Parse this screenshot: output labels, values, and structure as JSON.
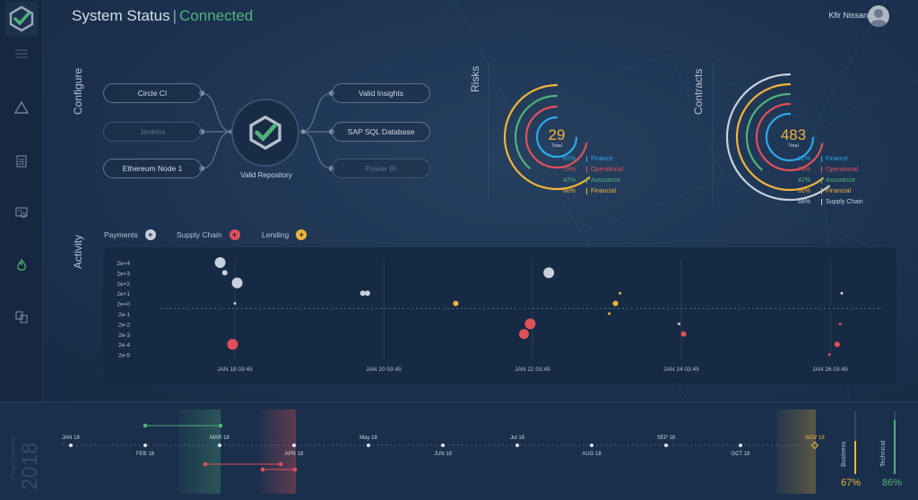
{
  "header": {
    "title": "System Status",
    "separator": "|",
    "status": "Connected",
    "user_name": "Kfir Nissan"
  },
  "colors": {
    "blue": "#2ea8e6",
    "red": "#e0505a",
    "green": "#4fb27a",
    "yellow": "#f0b43a",
    "white": "#c8d0dc",
    "accent_status": "#4fb27a"
  },
  "sidebar": {
    "items": [
      {
        "name": "menu-icon"
      },
      {
        "name": "alert-triangle-icon"
      },
      {
        "name": "document-icon"
      },
      {
        "name": "certificate-icon"
      },
      {
        "name": "flame-icon"
      },
      {
        "name": "transfer-icon"
      }
    ]
  },
  "configure": {
    "label": "Configure",
    "inputs": [
      "Circle CI",
      "Jenkins",
      "Ethereum Node 1"
    ],
    "outputs": [
      "Valid Insights",
      "SAP SQL Database",
      "Power BI"
    ],
    "repository": "Valid Repository"
  },
  "risks": {
    "label": "Risks",
    "total": "29",
    "total_label": "Total",
    "legend": [
      {
        "pct": "81%",
        "name": "Finance",
        "color": "#2ea8e6",
        "value": 0.81
      },
      {
        "pct": "78%",
        "name": "Operational",
        "color": "#e0505a",
        "value": 0.78
      },
      {
        "pct": "42%",
        "name": "Assurance",
        "color": "#4fb27a",
        "value": 0.42
      },
      {
        "pct": "66%",
        "name": "Financial",
        "color": "#f0b43a",
        "value": 0.66
      }
    ]
  },
  "contracts": {
    "label": "Contracts",
    "total": "483",
    "total_label": "Total",
    "legend": [
      {
        "pct": "81%",
        "name": "Finance",
        "color": "#2ea8e6",
        "value": 0.81
      },
      {
        "pct": "78%",
        "name": "Operational",
        "color": "#e0505a",
        "value": 0.78
      },
      {
        "pct": "42%",
        "name": "Assurance",
        "color": "#4fb27a",
        "value": 0.42
      },
      {
        "pct": "66%",
        "name": "Financial",
        "color": "#f0b43a",
        "value": 0.66
      },
      {
        "pct": "66%",
        "name": "Supply Chain",
        "color": "#c8d0dc",
        "value": 0.66
      }
    ]
  },
  "activity": {
    "label": "Activity",
    "filters": [
      {
        "label": "Payments",
        "color": "#c8d0dc",
        "symbol": "+"
      },
      {
        "label": "Supply Chain",
        "color": "#e0505a",
        "symbol": "+"
      },
      {
        "label": "Lending",
        "color": "#f0b43a",
        "symbol": "+"
      }
    ],
    "y_ticks": [
      "2e+4",
      "2e+3",
      "2e+2",
      "2e+1",
      "2e+0",
      "2e-1",
      "2e-2",
      "2e-3",
      "2e-4",
      "2e-5"
    ],
    "x_ticks": [
      "JAN 18 03:45",
      "JAN 20 03:45",
      "JAN 22 03:45",
      "JAN 24 03:45",
      "JAN 26 03:45"
    ]
  },
  "chart_data": {
    "type": "scatter",
    "xlabel": "",
    "ylabel": "",
    "y_scale": "log",
    "points": [
      {
        "x": "JAN 17 23:00",
        "y": "2e+4",
        "size": 6,
        "color": "#c8d0dc"
      },
      {
        "x": "JAN 18 00:30",
        "y": "2e+3",
        "size": 3,
        "color": "#c8d0dc"
      },
      {
        "x": "JAN 18 04:30",
        "y": "2e+2",
        "size": 6,
        "color": "#c8d0dc"
      },
      {
        "x": "JAN 18 03:45",
        "y": "2e+0",
        "size": 1.5,
        "color": "#c8d0dc"
      },
      {
        "x": "JAN 18 03:00",
        "y": "2e-4",
        "size": 6,
        "color": "#e0505a"
      },
      {
        "x": "JAN 19 21:00",
        "y": "2e+1",
        "size": 3,
        "color": "#c8d0dc"
      },
      {
        "x": "JAN 19 22:30",
        "y": "2e+1",
        "size": 3,
        "color": "#c8d0dc"
      },
      {
        "x": "JAN 21 03:00",
        "y": "2e+0",
        "size": 3,
        "color": "#f0b43a"
      },
      {
        "x": "JAN 22 01:00",
        "y": "2e-3",
        "size": 5.5,
        "color": "#e0505a"
      },
      {
        "x": "JAN 22 03:00",
        "y": "2e-2",
        "size": 6,
        "color": "#e0505a"
      },
      {
        "x": "JAN 22 09:00",
        "y": "2e+3",
        "size": 6,
        "color": "#c8d0dc"
      },
      {
        "x": "JAN 23 06:30",
        "y": "2e+0",
        "size": 3,
        "color": "#f0b43a"
      },
      {
        "x": "JAN 23 08:00",
        "y": "2e+1",
        "size": 1.5,
        "color": "#f0b43a"
      },
      {
        "x": "JAN 23 04:30",
        "y": "2e-1",
        "size": 1.5,
        "color": "#f0b43a"
      },
      {
        "x": "JAN 24 03:00",
        "y": "2e-2",
        "size": 1.5,
        "color": "#c8d0dc"
      },
      {
        "x": "JAN 24 04:30",
        "y": "2e-3",
        "size": 3,
        "color": "#e0505a"
      },
      {
        "x": "JAN 26 06:00",
        "y": "2e-4",
        "size": 3,
        "color": "#e0505a"
      },
      {
        "x": "JAN 26 07:00",
        "y": "2e-2",
        "size": 1.5,
        "color": "#e0505a"
      },
      {
        "x": "JAN 26 03:30",
        "y": "2e-5",
        "size": 1.5,
        "color": "#e0505a"
      },
      {
        "x": "JAN 26 07:30",
        "y": "2e+1",
        "size": 1.5,
        "color": "#c8d0dc"
      }
    ]
  },
  "timeline": {
    "subtitle": "Project timeline",
    "year": "2018",
    "months_top": [
      "JAN 18",
      "MAR 18",
      "May 18",
      "Jul 18",
      "SEP 18",
      "NOV 18"
    ],
    "months_bottom": [
      "FEB 18",
      "APR 18",
      "JUN 18",
      "AUG 18",
      "OCT 18"
    ],
    "business_label": "Business",
    "business_value": "67%",
    "business_fill": 0.67,
    "technical_label": "Technical",
    "technical_value": "86%",
    "technical_fill": 0.86
  }
}
